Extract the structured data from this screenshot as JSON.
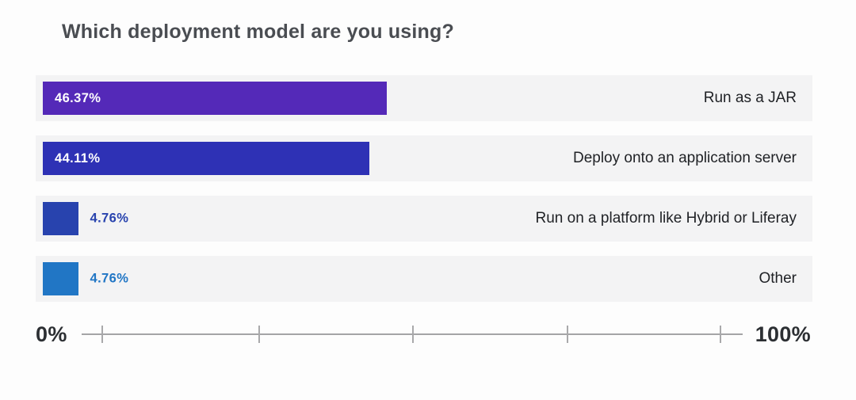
{
  "title": "Which deployment model are you using?",
  "chart_data": {
    "type": "bar",
    "orientation": "horizontal",
    "title": "Which deployment model are you using?",
    "categories": [
      "Run as a JAR",
      "Deploy onto an application server",
      "Run on a platform like Hybrid or Liferay",
      "Other"
    ],
    "values": [
      46.37,
      44.11,
      4.76,
      4.76
    ],
    "value_labels": [
      "46.37%",
      "44.11%",
      "4.76%",
      "4.76%"
    ],
    "bar_colors": [
      "#5429b8",
      "#2e31b5",
      "#2843ae",
      "#2176c5"
    ],
    "xlim": [
      0,
      100
    ],
    "axis": {
      "min_label": "0%",
      "max_label": "100%",
      "tick_positions_pct": [
        3,
        26.8,
        50,
        73.4,
        96.5
      ]
    },
    "legend": "none",
    "grid": "off",
    "row_background": "#f3f3f4"
  },
  "colors": {
    "background": "#fdfdfd",
    "title_text": "#4a4d52",
    "category_text": "#1f2125",
    "axis_text": "#2c2f33",
    "axis_line": "#a4a4a6",
    "inside_value_text": "#ffffff"
  }
}
